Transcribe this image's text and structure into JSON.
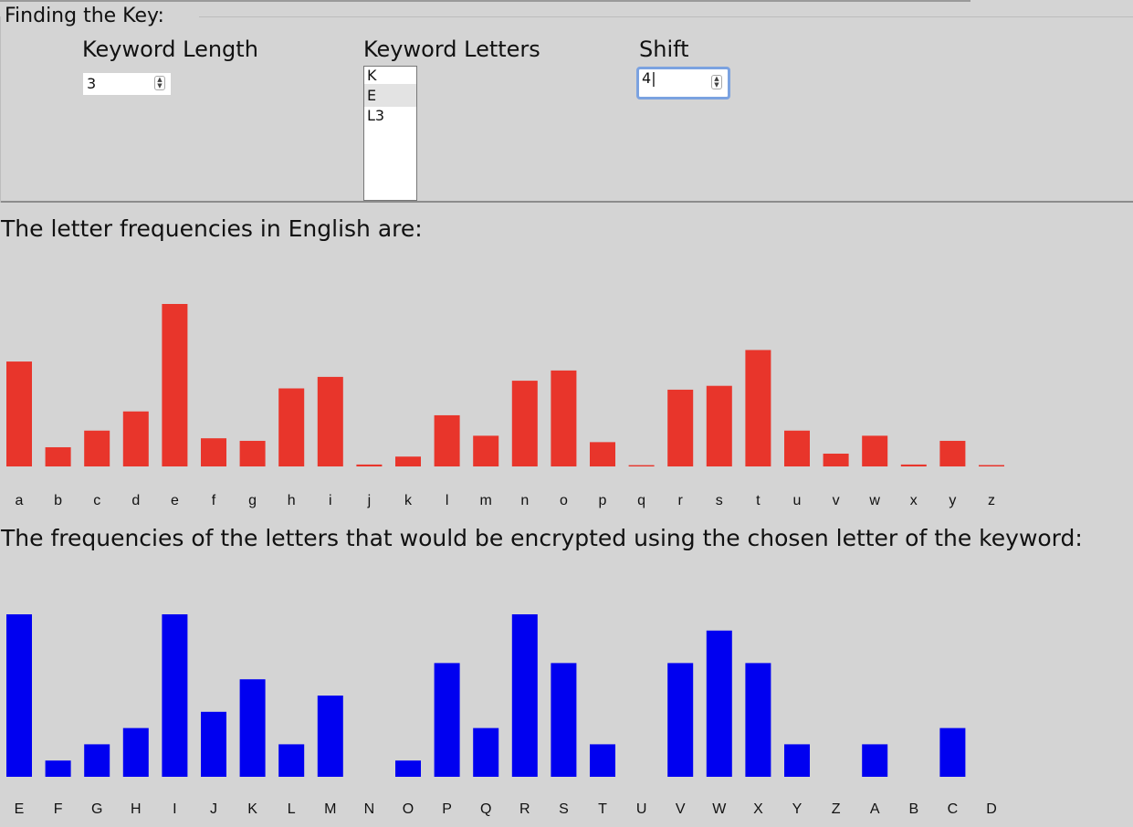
{
  "key_panel": {
    "title": "Finding the Key:",
    "keyword_length_label": "Keyword Length",
    "keyword_length_value": "3",
    "keyword_letters_label": "Keyword Letters",
    "keyword_letters": [
      "K",
      "E",
      "L3"
    ],
    "keyword_letters_selected_index": 1,
    "shift_label": "Shift",
    "shift_value": "4"
  },
  "english_label": "The letter frequencies in English are:",
  "encrypted_label": "The frequencies of the letters that would be encrypted using the chosen letter of the keyword:",
  "colors": {
    "english_bar": "#e8352b",
    "encrypted_bar": "#0000f0",
    "background": "#d4d4d4"
  },
  "chart_data": [
    {
      "type": "bar",
      "name": "english-frequency-chart",
      "categories": [
        "a",
        "b",
        "c",
        "d",
        "e",
        "f",
        "g",
        "h",
        "i",
        "j",
        "k",
        "l",
        "m",
        "n",
        "o",
        "p",
        "q",
        "r",
        "s",
        "t",
        "u",
        "v",
        "w",
        "x",
        "y",
        "z"
      ],
      "values": [
        8.2,
        1.5,
        2.8,
        4.3,
        12.7,
        2.2,
        2.0,
        6.1,
        7.0,
        0.15,
        0.77,
        4.0,
        2.4,
        6.7,
        7.5,
        1.9,
        0.1,
        6.0,
        6.3,
        9.1,
        2.8,
        1.0,
        2.4,
        0.15,
        2.0,
        0.07
      ],
      "ylim": [
        0,
        12.7
      ]
    },
    {
      "type": "bar",
      "name": "encrypted-frequency-chart",
      "categories": [
        "E",
        "F",
        "G",
        "H",
        "I",
        "J",
        "K",
        "L",
        "M",
        "N",
        "O",
        "P",
        "Q",
        "R",
        "S",
        "T",
        "U",
        "V",
        "W",
        "X",
        "Y",
        "Z",
        "A",
        "B",
        "C",
        "D"
      ],
      "values": [
        10,
        1,
        2,
        3,
        10,
        4,
        6,
        2,
        5,
        0,
        1,
        7,
        3,
        10,
        7,
        2,
        0,
        7,
        9,
        7,
        2,
        0,
        2,
        0,
        3,
        0
      ],
      "ylim": [
        0,
        10
      ]
    }
  ]
}
